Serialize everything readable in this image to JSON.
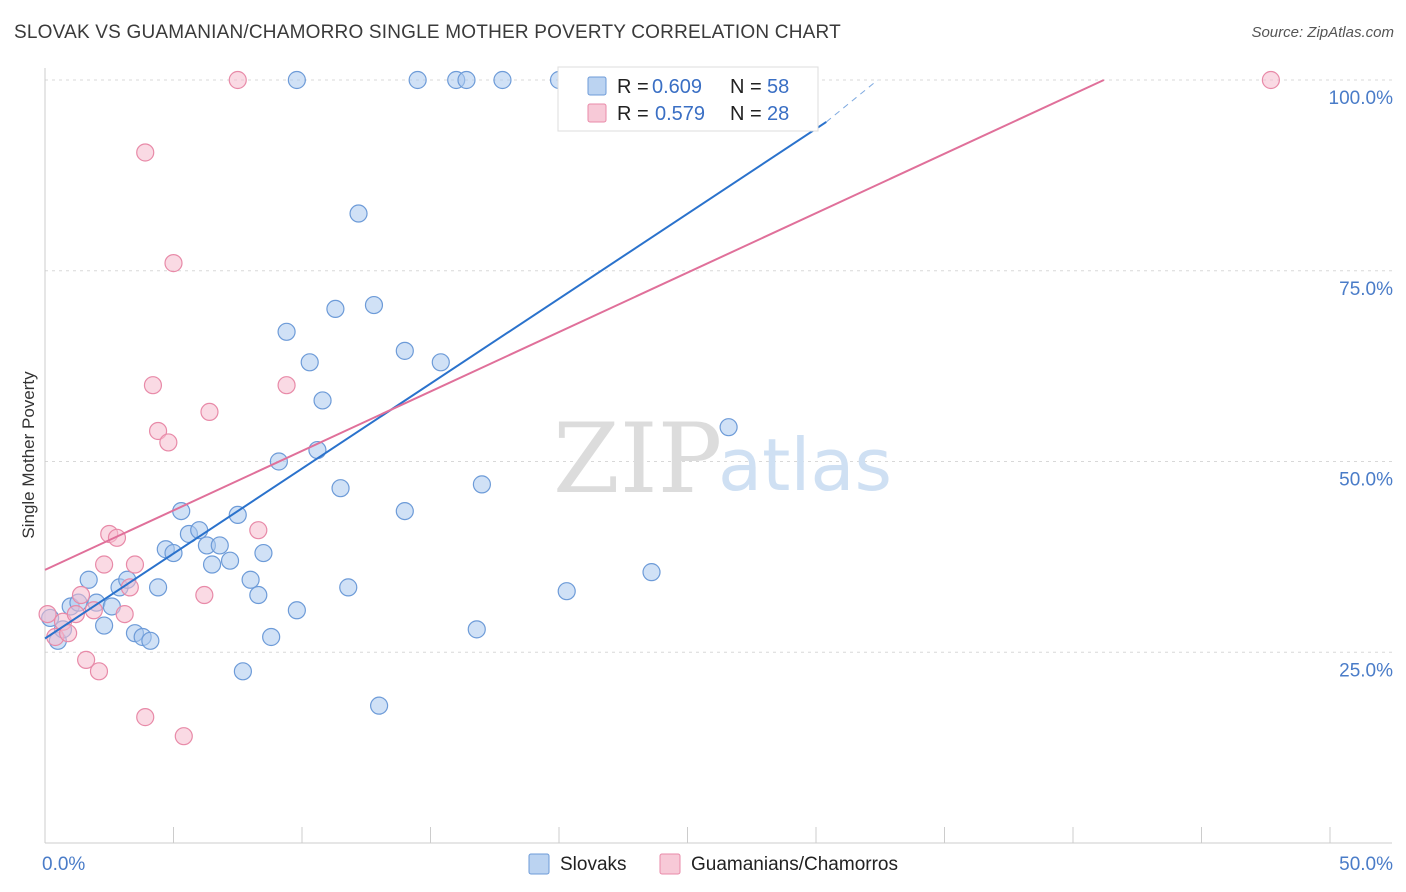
{
  "title": "SLOVAK VS GUAMANIAN/CHAMORRO SINGLE MOTHER POVERTY CORRELATION CHART",
  "source": "Source: ZipAtlas.com",
  "watermark": {
    "zip": "ZIP",
    "atlas": "atlas"
  },
  "colors": {
    "blue_fill": "#aac8ee",
    "blue_stroke": "#6d9bd8",
    "blue_line": "#2a72cc",
    "pink_fill": "#f5bccd",
    "pink_stroke": "#e88aa8",
    "pink_line": "#e0709a",
    "grid": "#d8d8d8"
  },
  "chart_data": {
    "type": "scatter",
    "title": "SLOVAK VS GUAMANIAN/CHAMORRO SINGLE MOTHER POVERTY CORRELATION CHART",
    "xlabel": "",
    "ylabel": "Single Mother Poverty",
    "xlim": [
      0,
      50
    ],
    "ylim": [
      0,
      100
    ],
    "x_tick_labels": [
      "0.0%",
      "50.0%"
    ],
    "y_tick_labels": [
      "25.0%",
      "50.0%",
      "75.0%",
      "100.0%"
    ],
    "y_ticks": [
      25,
      50,
      75,
      100
    ],
    "grid": true,
    "legend_position": "top-center",
    "legend": [
      {
        "series": "Slovaks",
        "r_label": "R =",
        "r_value": "0.609",
        "n_label": "N =",
        "n_value": "58"
      },
      {
        "series": "Guamanians/Chamorros",
        "r_label": "R =",
        "r_value": "0.579",
        "n_label": "N =",
        "n_value": "28"
      }
    ],
    "series": [
      {
        "name": "Slovaks",
        "color": "#aac8ee",
        "trend": {
          "x": [
            0,
            32.4
          ],
          "y": [
            26.8,
            100
          ],
          "dashed_extension": {
            "x": [
              30.4,
              32.4
            ],
            "y": [
              94.5,
              100
            ]
          }
        },
        "points": [
          [
            0.2,
            29.5
          ],
          [
            0.5,
            26.5
          ],
          [
            0.7,
            28.0
          ],
          [
            1.0,
            31.0
          ],
          [
            1.3,
            31.5
          ],
          [
            1.7,
            34.5
          ],
          [
            2.0,
            31.5
          ],
          [
            2.3,
            28.5
          ],
          [
            2.6,
            31.0
          ],
          [
            2.9,
            33.5
          ],
          [
            3.2,
            34.5
          ],
          [
            3.5,
            27.5
          ],
          [
            3.8,
            27.0
          ],
          [
            4.1,
            26.5
          ],
          [
            4.4,
            33.5
          ],
          [
            4.7,
            38.5
          ],
          [
            5.0,
            38.0
          ],
          [
            5.3,
            43.5
          ],
          [
            5.6,
            40.5
          ],
          [
            6.0,
            41.0
          ],
          [
            6.3,
            39.0
          ],
          [
            6.5,
            36.5
          ],
          [
            6.8,
            39.0
          ],
          [
            7.2,
            37.0
          ],
          [
            7.5,
            43.0
          ],
          [
            7.7,
            22.5
          ],
          [
            8.0,
            34.5
          ],
          [
            8.3,
            32.5
          ],
          [
            8.5,
            38.0
          ],
          [
            8.8,
            27.0
          ],
          [
            9.1,
            50.0
          ],
          [
            9.4,
            67.0
          ],
          [
            9.8,
            100.0
          ],
          [
            9.8,
            30.5
          ],
          [
            10.3,
            63.0
          ],
          [
            10.6,
            51.5
          ],
          [
            10.8,
            58.0
          ],
          [
            11.3,
            70.0
          ],
          [
            11.5,
            46.5
          ],
          [
            11.8,
            33.5
          ],
          [
            12.2,
            82.5
          ],
          [
            12.8,
            70.5
          ],
          [
            13.0,
            18.0
          ],
          [
            14.0,
            64.5
          ],
          [
            14.0,
            43.5
          ],
          [
            14.5,
            100.0
          ],
          [
            15.4,
            63.0
          ],
          [
            16.0,
            100.0
          ],
          [
            16.4,
            100.0
          ],
          [
            16.8,
            28.0
          ],
          [
            17.0,
            47.0
          ],
          [
            17.8,
            100.0
          ],
          [
            20.0,
            100.0
          ],
          [
            20.3,
            33.0
          ],
          [
            21.0,
            100.0
          ],
          [
            23.6,
            35.5
          ],
          [
            26.2,
            100.0
          ],
          [
            26.6,
            54.5
          ]
        ]
      },
      {
        "name": "Guamanians/Chamorros",
        "color": "#f5bccd",
        "trend": {
          "x": [
            0,
            41.2
          ],
          "y": [
            35.8,
            100
          ]
        },
        "points": [
          [
            0.1,
            30.0
          ],
          [
            0.4,
            27.0
          ],
          [
            0.7,
            29.0
          ],
          [
            0.9,
            27.5
          ],
          [
            1.2,
            30.0
          ],
          [
            1.4,
            32.5
          ],
          [
            1.6,
            24.0
          ],
          [
            1.9,
            30.5
          ],
          [
            2.1,
            22.5
          ],
          [
            2.3,
            36.5
          ],
          [
            2.5,
            40.5
          ],
          [
            2.8,
            40.0
          ],
          [
            3.1,
            30.0
          ],
          [
            3.3,
            33.5
          ],
          [
            3.5,
            36.5
          ],
          [
            3.9,
            16.5
          ],
          [
            3.9,
            90.5
          ],
          [
            4.2,
            60.0
          ],
          [
            4.4,
            54.0
          ],
          [
            4.8,
            52.5
          ],
          [
            5.0,
            76.0
          ],
          [
            5.4,
            14.0
          ],
          [
            6.2,
            32.5
          ],
          [
            6.4,
            56.5
          ],
          [
            7.5,
            100.0
          ],
          [
            8.3,
            41.0
          ],
          [
            9.4,
            60.0
          ],
          [
            47.7,
            100.0
          ]
        ]
      }
    ]
  }
}
